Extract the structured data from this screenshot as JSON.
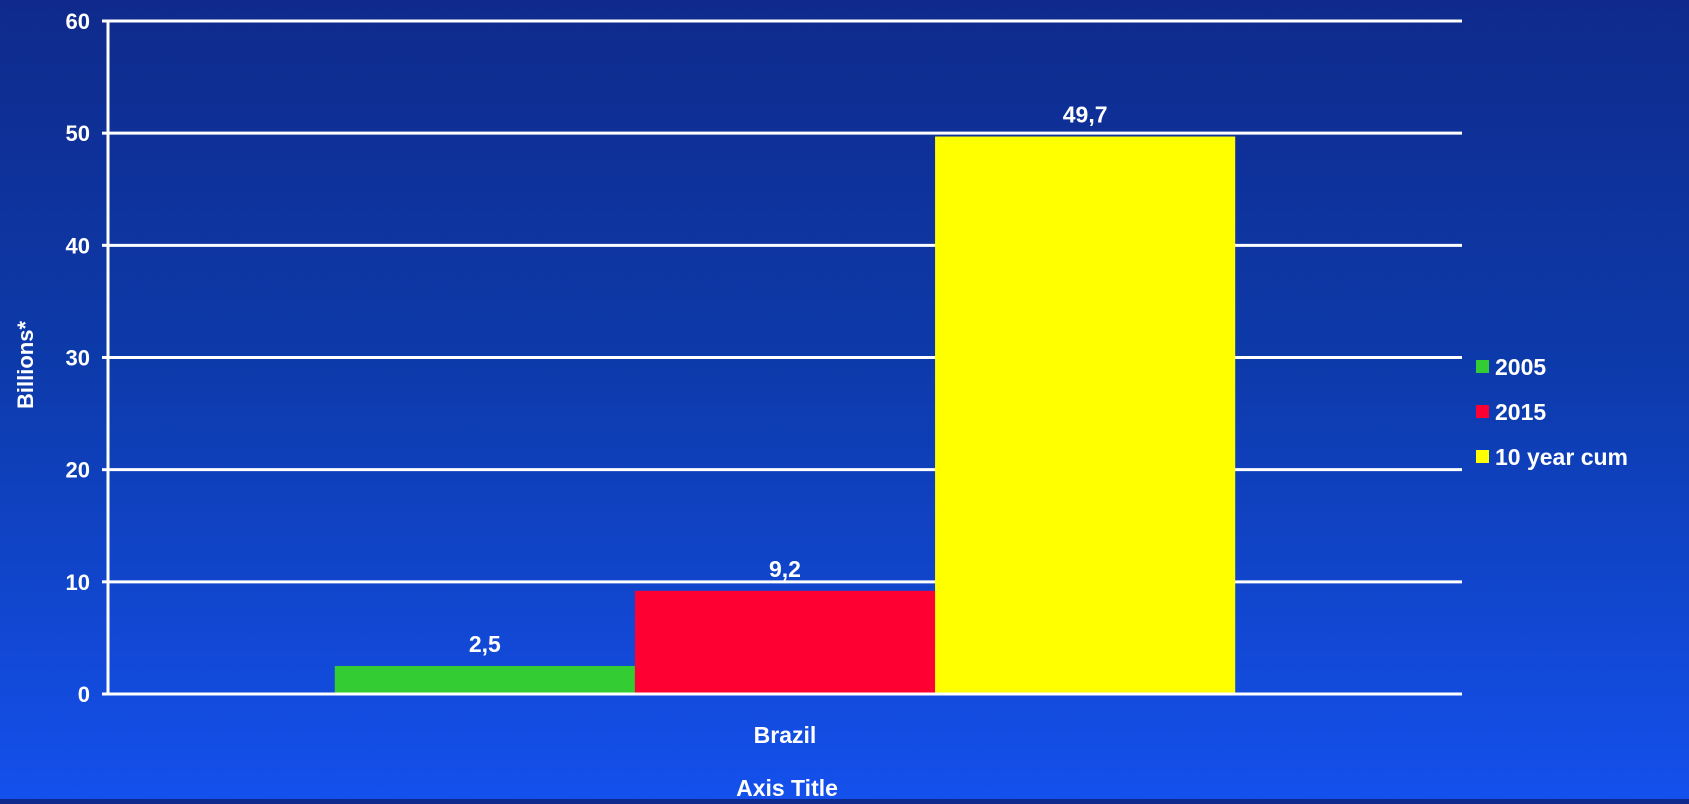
{
  "chart_data": {
    "type": "bar",
    "categories": [
      "Brazil"
    ],
    "series": [
      {
        "name": "2005",
        "values": [
          2.5
        ],
        "labels": [
          "2,5"
        ],
        "color": "#33cc33"
      },
      {
        "name": "2015",
        "values": [
          9.2
        ],
        "labels": [
          "9,2"
        ],
        "color": "#ff0033"
      },
      {
        "name": "10 year cum",
        "values": [
          49.7
        ],
        "labels": [
          "49,7"
        ],
        "color": "#ffff00"
      }
    ],
    "title": "",
    "xlabel": "Axis Title",
    "ylabel": "Billions*",
    "ylim": [
      0,
      60
    ],
    "yticks": [
      0,
      10,
      20,
      30,
      40,
      50,
      60
    ],
    "ytick_labels": [
      "0",
      "10",
      "20",
      "30",
      "40",
      "50",
      "60"
    ],
    "grid": true,
    "legend_position": "right"
  },
  "colors": {
    "background_top": "#0f2a8c",
    "background_bottom": "#1450ec",
    "gridline": "#ffffff",
    "text": "#ffffff"
  }
}
